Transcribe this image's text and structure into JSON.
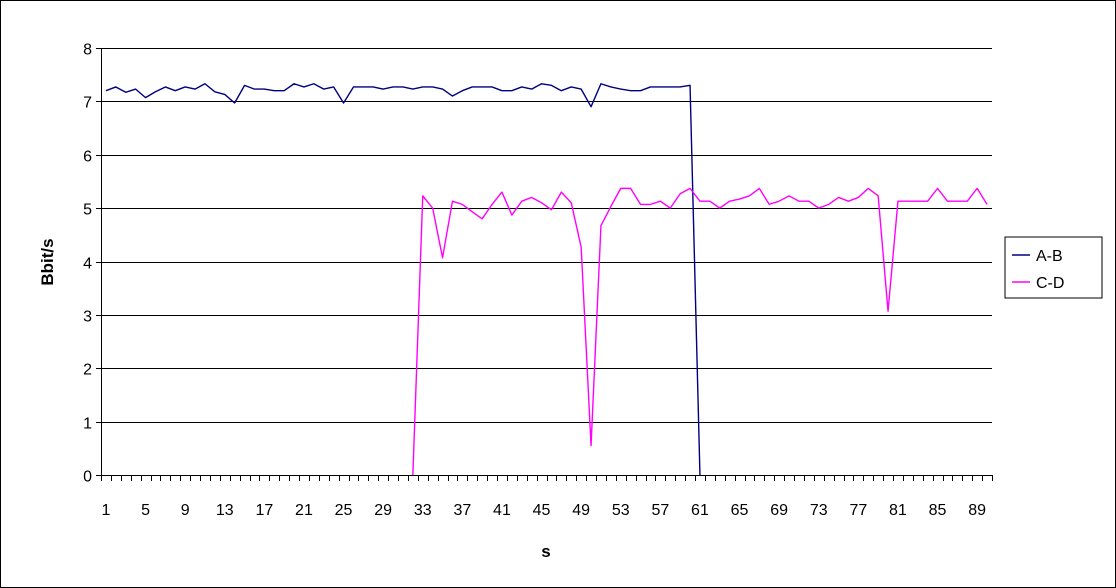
{
  "chart_data": {
    "type": "line",
    "title": "",
    "xlabel": "s",
    "ylabel": "Bbit/s",
    "ylim": [
      0,
      8
    ],
    "yticks": [
      0,
      1,
      2,
      3,
      4,
      5,
      6,
      7,
      8
    ],
    "x": [
      1,
      2,
      3,
      4,
      5,
      6,
      7,
      8,
      9,
      10,
      11,
      12,
      13,
      14,
      15,
      16,
      17,
      18,
      19,
      20,
      21,
      22,
      23,
      24,
      25,
      26,
      27,
      28,
      29,
      30,
      31,
      32,
      33,
      34,
      35,
      36,
      37,
      38,
      39,
      40,
      41,
      42,
      43,
      44,
      45,
      46,
      47,
      48,
      49,
      50,
      51,
      52,
      53,
      54,
      55,
      56,
      57,
      58,
      59,
      60,
      61,
      62,
      63,
      64,
      65,
      66,
      67,
      68,
      69,
      70,
      71,
      72,
      73,
      74,
      75,
      76,
      77,
      78,
      79,
      80,
      81,
      82,
      83,
      84,
      85,
      86,
      87,
      88,
      89,
      90
    ],
    "xtick_labels": [
      "1",
      "5",
      "9",
      "13",
      "17",
      "21",
      "25",
      "29",
      "33",
      "37",
      "41",
      "45",
      "49",
      "53",
      "57",
      "61",
      "65",
      "69",
      "73",
      "77",
      "81",
      "85",
      "89"
    ],
    "grid": "horizontal major gridlines",
    "legend_position": "right",
    "series": [
      {
        "name": "A-B",
        "color": "#000080",
        "values": [
          7.2,
          7.27,
          7.17,
          7.23,
          7.07,
          7.18,
          7.27,
          7.2,
          7.27,
          7.23,
          7.33,
          7.18,
          7.13,
          6.97,
          7.3,
          7.23,
          7.23,
          7.2,
          7.2,
          7.33,
          7.27,
          7.33,
          7.23,
          7.27,
          6.97,
          7.27,
          7.27,
          7.27,
          7.23,
          7.27,
          7.27,
          7.23,
          7.27,
          7.27,
          7.23,
          7.1,
          7.2,
          7.27,
          7.27,
          7.27,
          7.2,
          7.2,
          7.27,
          7.23,
          7.33,
          7.3,
          7.2,
          7.27,
          7.23,
          6.9,
          7.33,
          7.27,
          7.23,
          7.2,
          7.2,
          7.27,
          7.27,
          7.27,
          7.27,
          7.3,
          0,
          null,
          null,
          null,
          null,
          null,
          null,
          null,
          null,
          null,
          null,
          null,
          null,
          null,
          null,
          null,
          null,
          null,
          null,
          null,
          null,
          null,
          null,
          null,
          null,
          null,
          null,
          null,
          null,
          null
        ]
      },
      {
        "name": "C-D",
        "color": "#ff00ff",
        "values": [
          null,
          null,
          null,
          null,
          null,
          null,
          null,
          null,
          null,
          null,
          null,
          null,
          null,
          null,
          null,
          null,
          null,
          null,
          null,
          null,
          null,
          null,
          null,
          null,
          null,
          null,
          null,
          null,
          null,
          null,
          null,
          0,
          5.23,
          5.0,
          4.07,
          5.13,
          5.07,
          4.93,
          4.8,
          5.07,
          5.3,
          4.87,
          5.13,
          5.2,
          5.1,
          4.97,
          5.3,
          5.1,
          4.27,
          0.55,
          4.67,
          5.03,
          5.37,
          5.37,
          5.07,
          5.07,
          5.13,
          5.0,
          5.27,
          5.37,
          5.13,
          5.13,
          5.0,
          5.13,
          5.17,
          5.23,
          5.37,
          5.07,
          5.13,
          5.23,
          5.13,
          5.13,
          5.0,
          5.07,
          5.2,
          5.13,
          5.2,
          5.37,
          5.23,
          3.07,
          5.13,
          5.13,
          5.13,
          5.13,
          5.37,
          5.13,
          5.13,
          5.13,
          5.37,
          5.07
        ]
      }
    ]
  }
}
